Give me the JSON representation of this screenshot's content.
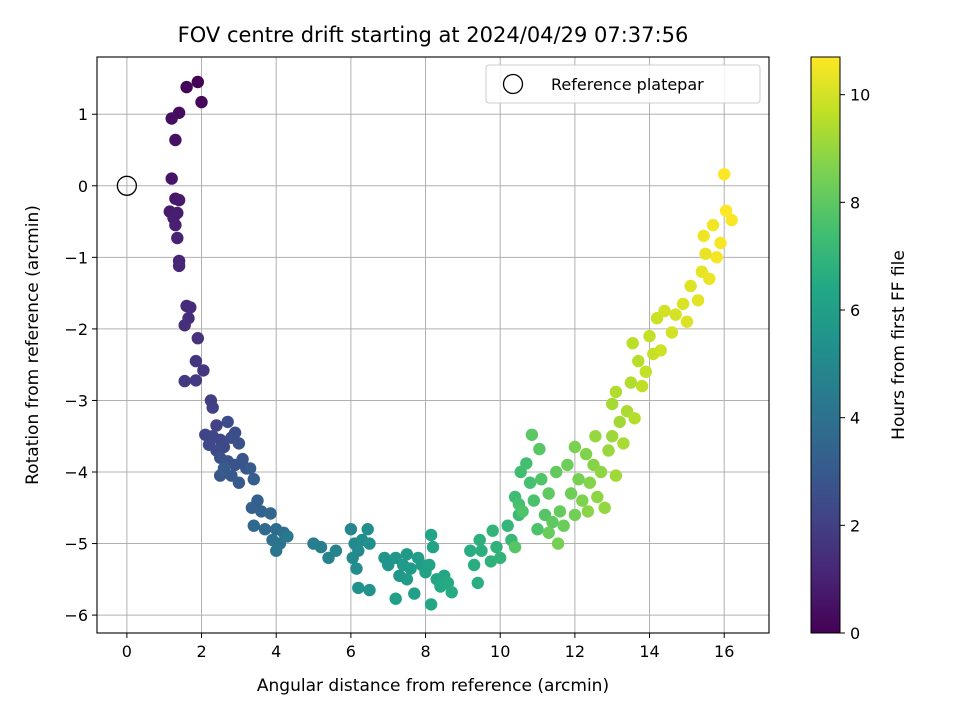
{
  "chart_data": {
    "type": "scatter",
    "title": "FOV centre drift starting at 2024/04/29 07:37:56",
    "xlabel": "Angular distance from reference (arcmin)",
    "ylabel": "Rotation from reference (arcmin)",
    "xlim": [
      -0.8,
      17.2
    ],
    "ylim": [
      -6.25,
      1.8
    ],
    "xticks": [
      0,
      2,
      4,
      6,
      8,
      10,
      12,
      14,
      16
    ],
    "yticks": [
      1,
      0,
      -1,
      -2,
      -3,
      -4,
      -5,
      -6
    ],
    "grid": true,
    "legend": {
      "placement": "top-right",
      "entries": [
        "Reference platepar"
      ]
    },
    "reference_point": {
      "name": "Reference platepar",
      "x": 0,
      "y": 0
    },
    "colorbar": {
      "label": "Hours from first FF file",
      "colormap": "viridis",
      "range": [
        0,
        10.7
      ],
      "ticks": [
        0,
        2,
        4,
        6,
        8,
        10
      ]
    },
    "series": [
      {
        "columns": [
          "x",
          "y",
          "hours"
        ],
        "points": [
          [
            1.9,
            1.45,
            0.0
          ],
          [
            1.6,
            1.38,
            0.1
          ],
          [
            2.0,
            1.17,
            0.2
          ],
          [
            1.4,
            1.02,
            0.3
          ],
          [
            1.2,
            0.94,
            0.4
          ],
          [
            1.3,
            0.64,
            0.5
          ],
          [
            1.2,
            0.1,
            0.6
          ],
          [
            1.3,
            -0.18,
            0.7
          ],
          [
            1.4,
            -0.2,
            0.75
          ],
          [
            1.15,
            -0.36,
            0.8
          ],
          [
            1.35,
            -0.38,
            0.85
          ],
          [
            1.25,
            -0.45,
            0.9
          ],
          [
            1.3,
            -0.55,
            0.95
          ],
          [
            1.35,
            -0.73,
            1.0
          ],
          [
            1.4,
            -1.05,
            1.1
          ],
          [
            1.4,
            -1.12,
            1.2
          ],
          [
            1.6,
            -1.68,
            1.3
          ],
          [
            1.7,
            -1.7,
            1.35
          ],
          [
            1.65,
            -1.85,
            1.4
          ],
          [
            1.55,
            -1.95,
            1.45
          ],
          [
            1.9,
            -2.13,
            1.5
          ],
          [
            1.85,
            -2.45,
            1.6
          ],
          [
            2.05,
            -2.58,
            1.7
          ],
          [
            1.85,
            -2.72,
            1.8
          ],
          [
            1.55,
            -2.73,
            1.85
          ],
          [
            2.25,
            -3.0,
            2.0
          ],
          [
            2.3,
            -3.1,
            2.05
          ],
          [
            2.4,
            -3.35,
            2.1
          ],
          [
            2.1,
            -3.48,
            2.15
          ],
          [
            2.3,
            -3.5,
            2.2
          ],
          [
            2.5,
            -3.55,
            2.25
          ],
          [
            2.2,
            -3.62,
            2.3
          ],
          [
            2.6,
            -3.65,
            2.35
          ],
          [
            2.4,
            -3.7,
            2.4
          ],
          [
            2.8,
            -3.52,
            2.45
          ],
          [
            2.7,
            -3.3,
            2.5
          ],
          [
            2.9,
            -3.45,
            2.55
          ],
          [
            3.0,
            -3.6,
            2.6
          ],
          [
            2.5,
            -3.8,
            2.65
          ],
          [
            2.7,
            -3.85,
            2.7
          ],
          [
            2.9,
            -3.9,
            2.75
          ],
          [
            3.1,
            -3.82,
            2.8
          ],
          [
            3.2,
            -3.95,
            2.85
          ],
          [
            2.5,
            -4.05,
            2.9
          ],
          [
            2.8,
            -4.05,
            2.95
          ],
          [
            3.0,
            -4.15,
            3.0
          ],
          [
            3.3,
            -3.95,
            3.05
          ],
          [
            2.6,
            -3.95,
            3.1
          ],
          [
            3.4,
            -4.1,
            3.15
          ],
          [
            3.5,
            -4.4,
            3.2
          ],
          [
            3.35,
            -4.5,
            3.3
          ],
          [
            3.6,
            -4.55,
            3.4
          ],
          [
            3.85,
            -4.58,
            3.5
          ],
          [
            3.4,
            -4.75,
            3.6
          ],
          [
            3.7,
            -4.8,
            3.7
          ],
          [
            4.0,
            -4.8,
            3.8
          ],
          [
            4.2,
            -4.85,
            3.9
          ],
          [
            3.9,
            -4.95,
            4.0
          ],
          [
            4.1,
            -5.0,
            4.1
          ],
          [
            4.0,
            -5.1,
            4.2
          ],
          [
            4.3,
            -4.9,
            4.3
          ],
          [
            5.0,
            -5.0,
            4.5
          ],
          [
            5.2,
            -5.05,
            4.6
          ],
          [
            5.4,
            -5.2,
            4.7
          ],
          [
            5.6,
            -5.1,
            4.8
          ],
          [
            6.0,
            -4.8,
            4.9
          ],
          [
            6.1,
            -5.0,
            5.0
          ],
          [
            6.2,
            -5.1,
            5.05
          ],
          [
            6.05,
            -5.2,
            5.1
          ],
          [
            6.15,
            -5.35,
            5.15
          ],
          [
            6.3,
            -4.95,
            5.2
          ],
          [
            6.45,
            -4.8,
            5.25
          ],
          [
            6.5,
            -5.0,
            5.3
          ],
          [
            6.2,
            -5.62,
            5.35
          ],
          [
            6.5,
            -5.65,
            5.4
          ],
          [
            6.9,
            -5.2,
            5.5
          ],
          [
            7.0,
            -5.3,
            5.55
          ],
          [
            7.2,
            -5.2,
            5.6
          ],
          [
            7.3,
            -5.45,
            5.65
          ],
          [
            7.5,
            -5.15,
            5.7
          ],
          [
            7.4,
            -5.3,
            5.75
          ],
          [
            7.6,
            -5.35,
            5.8
          ],
          [
            7.5,
            -5.5,
            5.85
          ],
          [
            7.8,
            -5.2,
            5.9
          ],
          [
            7.9,
            -5.3,
            5.95
          ],
          [
            7.2,
            -5.77,
            6.0
          ],
          [
            7.7,
            -5.7,
            6.05
          ],
          [
            8.0,
            -5.4,
            6.1
          ],
          [
            8.1,
            -5.3,
            6.15
          ],
          [
            8.2,
            -5.05,
            6.2
          ],
          [
            8.15,
            -4.88,
            6.25
          ],
          [
            8.3,
            -5.5,
            6.3
          ],
          [
            8.5,
            -5.45,
            6.35
          ],
          [
            8.15,
            -5.85,
            6.4
          ],
          [
            8.4,
            -5.6,
            6.45
          ],
          [
            8.6,
            -5.55,
            6.5
          ],
          [
            8.7,
            -5.68,
            6.55
          ],
          [
            9.2,
            -5.1,
            6.6
          ],
          [
            9.3,
            -5.3,
            6.65
          ],
          [
            9.4,
            -5.55,
            6.7
          ],
          [
            9.5,
            -5.1,
            6.75
          ],
          [
            9.45,
            -4.95,
            6.8
          ],
          [
            9.75,
            -5.25,
            6.85
          ],
          [
            9.9,
            -5.05,
            6.9
          ],
          [
            10.0,
            -5.2,
            6.95
          ],
          [
            9.8,
            -4.82,
            7.0
          ],
          [
            10.2,
            -4.75,
            7.05
          ],
          [
            10.3,
            -4.95,
            7.1
          ],
          [
            10.5,
            -4.6,
            7.2
          ],
          [
            10.4,
            -4.35,
            7.3
          ],
          [
            10.55,
            -4.0,
            7.4
          ],
          [
            10.7,
            -3.88,
            7.45
          ],
          [
            10.8,
            -4.15,
            7.5
          ],
          [
            10.5,
            -4.45,
            7.55
          ],
          [
            10.9,
            -4.4,
            7.6
          ],
          [
            11.0,
            -4.8,
            7.65
          ],
          [
            10.6,
            -4.55,
            7.7
          ],
          [
            11.1,
            -4.1,
            7.75
          ],
          [
            11.2,
            -4.6,
            7.8
          ],
          [
            10.4,
            -5.05,
            7.85
          ],
          [
            11.05,
            -3.68,
            7.9
          ],
          [
            10.85,
            -3.48,
            7.95
          ],
          [
            11.3,
            -4.3,
            8.0
          ],
          [
            11.4,
            -4.7,
            8.05
          ],
          [
            11.5,
            -4.0,
            8.1
          ],
          [
            11.6,
            -4.55,
            8.15
          ],
          [
            11.3,
            -4.85,
            8.2
          ],
          [
            11.7,
            -4.75,
            8.25
          ],
          [
            11.8,
            -3.9,
            8.3
          ],
          [
            11.9,
            -4.3,
            8.35
          ],
          [
            12.0,
            -4.6,
            8.4
          ],
          [
            11.55,
            -5.0,
            8.45
          ],
          [
            12.1,
            -4.1,
            8.5
          ],
          [
            12.0,
            -3.65,
            8.55
          ],
          [
            12.2,
            -4.4,
            8.6
          ],
          [
            12.3,
            -3.75,
            8.65
          ],
          [
            12.4,
            -4.15,
            8.7
          ],
          [
            12.5,
            -3.9,
            8.75
          ],
          [
            12.35,
            -4.55,
            8.8
          ],
          [
            12.6,
            -4.35,
            8.85
          ],
          [
            12.7,
            -4.0,
            8.9
          ],
          [
            12.8,
            -4.5,
            8.95
          ],
          [
            12.55,
            -3.5,
            9.0
          ],
          [
            12.9,
            -3.7,
            9.05
          ],
          [
            13.0,
            -3.5,
            9.1
          ],
          [
            13.1,
            -4.05,
            9.15
          ],
          [
            13.2,
            -3.3,
            9.2
          ],
          [
            13.0,
            -3.05,
            9.25
          ],
          [
            13.3,
            -3.6,
            9.3
          ],
          [
            13.4,
            -3.15,
            9.35
          ],
          [
            13.1,
            -2.88,
            9.4
          ],
          [
            13.5,
            -2.75,
            9.45
          ],
          [
            13.6,
            -3.25,
            9.5
          ],
          [
            13.7,
            -2.45,
            9.55
          ],
          [
            13.55,
            -2.2,
            9.6
          ],
          [
            13.8,
            -2.8,
            9.65
          ],
          [
            13.9,
            -2.6,
            9.7
          ],
          [
            14.0,
            -2.1,
            9.75
          ],
          [
            14.1,
            -2.35,
            9.8
          ],
          [
            14.2,
            -1.85,
            9.85
          ],
          [
            14.3,
            -2.3,
            9.9
          ],
          [
            14.4,
            -1.75,
            9.95
          ],
          [
            14.6,
            -2.05,
            10.0
          ],
          [
            14.7,
            -1.8,
            10.05
          ],
          [
            14.9,
            -1.65,
            10.1
          ],
          [
            15.0,
            -1.9,
            10.15
          ],
          [
            15.1,
            -1.4,
            10.2
          ],
          [
            15.3,
            -1.6,
            10.25
          ],
          [
            15.4,
            -1.2,
            10.3
          ],
          [
            15.5,
            -0.95,
            10.35
          ],
          [
            15.6,
            -1.3,
            10.4
          ],
          [
            15.45,
            -0.7,
            10.45
          ],
          [
            15.7,
            -0.55,
            10.5
          ],
          [
            15.8,
            -1.0,
            10.55
          ],
          [
            15.9,
            -0.8,
            10.6
          ],
          [
            16.2,
            -0.48,
            10.63
          ],
          [
            16.05,
            -0.35,
            10.66
          ],
          [
            16.0,
            0.16,
            10.7
          ]
        ]
      }
    ]
  }
}
